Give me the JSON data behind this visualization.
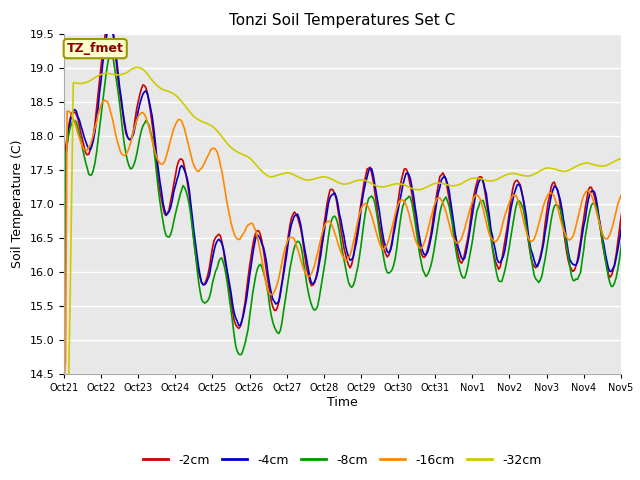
{
  "title": "Tonzi Soil Temperatures Set C",
  "xlabel": "Time",
  "ylabel": "Soil Temperature (C)",
  "ylim": [
    14.5,
    19.5
  ],
  "fig_bg": "#ffffff",
  "plot_bg": "#e8e8e8",
  "legend_label": "TZ_fmet",
  "legend_bg": "#ffffcc",
  "legend_border": "#999900",
  "series_colors": {
    "-2cm": "#cc0000",
    "-4cm": "#0000cc",
    "-8cm": "#009900",
    "-16cm": "#ff8800",
    "-32cm": "#cccc00"
  },
  "series_labels": [
    "-2cm",
    "-4cm",
    "-8cm",
    "-16cm",
    "-32cm"
  ],
  "tick_labels": [
    "Oct 21",
    "Oct 22",
    "Oct 23",
    "Oct 24",
    "Oct 25",
    "Oct 26",
    "Oct 27",
    "Oct 28",
    "Oct 29",
    "Oct 30",
    "Oct 31",
    "Nov 1",
    "Nov 2",
    "Nov 3",
    "Nov 4",
    "Nov 5"
  ]
}
